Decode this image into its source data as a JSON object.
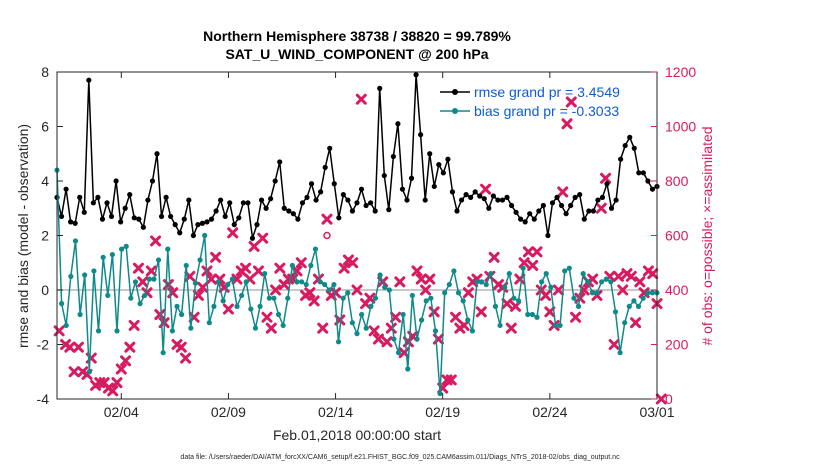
{
  "chart_data": {
    "type": "line",
    "title_line1": "Northern Hemisphere 38738 / 38820 = 99.789%",
    "title_line2": "SAT_U_WIND_COMPONENT @ 200 hPa",
    "ylabel_left": "rmse and bias (model - observation)",
    "ylabel_right": "# of obs: o=possible; ×=assimilated",
    "xlabel": "Feb.01,2018 00:00:00 start",
    "footnote": "data file: /Users/raeder/DAI/ATM_forcXX/CAM6_setup/f.e21.FHIST_BGC.f09_025.CAM6assim.011/Diags_NTrS_2018-02/obs_diag_output.nc",
    "xlim": [
      1,
      29
    ],
    "ylim_left": [
      -4,
      8
    ],
    "ylim_right": [
      0,
      1200
    ],
    "x_ticks": [
      {
        "x": 4,
        "label": "02/04"
      },
      {
        "x": 9,
        "label": "02/09"
      },
      {
        "x": 14,
        "label": "02/14"
      },
      {
        "x": 19,
        "label": "02/19"
      },
      {
        "x": 24,
        "label": "02/24"
      },
      {
        "x": 29,
        "label": "03/01"
      }
    ],
    "y_left_ticks": [
      -4,
      -2,
      0,
      2,
      4,
      6,
      8
    ],
    "y_right_ticks": [
      0,
      200,
      400,
      600,
      800,
      1000,
      1200
    ],
    "legend_position": "top-right",
    "colors": {
      "rmse": "#000000",
      "bias": "#0f8a8a",
      "obs": "#d81b60",
      "zero_line": "#b5b5b5",
      "legend_text": "#0d5bd8"
    },
    "series": [
      {
        "name": "rmse grand pr = 3.4549",
        "values": [
          3.4,
          2.7,
          3.7,
          2.5,
          2.45,
          3.4,
          2.85,
          7.7,
          3.2,
          3.4,
          2.6,
          3.2,
          2.7,
          4.0,
          2.5,
          3.0,
          3.5,
          2.65,
          2.6,
          2.3,
          3.3,
          4.0,
          5.0,
          2.7,
          3.4,
          2.7,
          2.4,
          2.1,
          2.6,
          3.3,
          2.0,
          2.4,
          2.45,
          2.5,
          2.6,
          2.9,
          3.3,
          2.7,
          3.2,
          2.4,
          2.65,
          3.2,
          3.2,
          1.9,
          2.4,
          3.3,
          3.0,
          3.35,
          4.0,
          4.7,
          3.0,
          2.9,
          2.8,
          2.6,
          3.2,
          3.4,
          3.9,
          3.3,
          3.6,
          4.5,
          5.2,
          3.9,
          2.65,
          3.5,
          3.3,
          2.9,
          3.2,
          3.7,
          3.1,
          3.2,
          2.9,
          7.4,
          4.2,
          2.95,
          4.9,
          6.1,
          3.7,
          3.3,
          4.1,
          7.9,
          5.7,
          3.3,
          5.0,
          3.8,
          4.6,
          4.3,
          4.8,
          3.6,
          2.9,
          3.3,
          3.5,
          3.4,
          3.6,
          3.45,
          3.35,
          3.0,
          3.45,
          3.3,
          3.3,
          3.4,
          3.1,
          2.85,
          2.6,
          2.5,
          2.8,
          2.6,
          2.9,
          3.1,
          2.0,
          3.2,
          3.4,
          3.1,
          2.8,
          3.1,
          3.4,
          3.5,
          2.6,
          2.9,
          2.9,
          3.3,
          3.4,
          3.9,
          3.0,
          3.3,
          4.8,
          5.3,
          5.6,
          5.2,
          4.3,
          4.3,
          4.0,
          3.7,
          3.8
        ]
      },
      {
        "name": "bias grand pr = -0.3033",
        "values": [
          4.4,
          -0.5,
          -1.3,
          0.5,
          1.8,
          -0.9,
          0.55,
          -3.0,
          0.7,
          -1.5,
          1.2,
          -0.2,
          1.3,
          -1.5,
          1.5,
          1.6,
          -0.3,
          0.3,
          -0.5,
          -0.2,
          0.4,
          0.4,
          1.1,
          -2.3,
          1.5,
          -1.5,
          -0.6,
          -0.9,
          0.9,
          -1.4,
          0.25,
          1.1,
          2.0,
          -1.2,
          -0.6,
          0.3,
          -0.4,
          0.2,
          0.4,
          -0.6,
          -0.2,
          0.3,
          -0.7,
          -1.4,
          -0.6,
          0.6,
          -0.3,
          -0.3,
          -0.9,
          -1.3,
          -0.3,
          0.9,
          0.3,
          0.3,
          0.2,
          0.9,
          1.5,
          0.3,
          0.2,
          0.0,
          0.2,
          -1.9,
          -0.3,
          -0.1,
          -1.2,
          -1.6,
          -0.9,
          -1.4,
          -0.6,
          -0.3,
          0.55,
          0.1,
          0.0,
          -1.8,
          -2.3,
          -0.9,
          -2.9,
          -0.2,
          -1.8,
          -1.1,
          -0.4,
          -0.3,
          -1.5,
          -3.8,
          -0.1,
          0.2,
          0.7,
          -0.1,
          -0.4,
          -1.1,
          -1.5,
          0.3,
          0.3,
          0.2,
          0.6,
          -0.6,
          -1.3,
          0.1,
          0.6,
          -0.3,
          -0.4,
          0.8,
          -0.9,
          -0.9,
          -1.0,
          0.3,
          0.6,
          0.1,
          -1.3,
          -1.3,
          0.7,
          0.8,
          -0.3,
          -0.6,
          0.6,
          0.3,
          -0.1,
          -0.1,
          0.3,
          0.4,
          0.3,
          -0.8,
          -2.3,
          -1.2,
          -0.6,
          -0.4,
          -0.6,
          -0.3,
          -0.1,
          -0.1,
          -0.1
        ]
      }
    ],
    "obs_assimilated_points": [
      [
        1.1,
        250
      ],
      [
        1.4,
        200
      ],
      [
        1.6,
        190
      ],
      [
        1.8,
        100
      ],
      [
        2.0,
        190
      ],
      [
        2.2,
        100
      ],
      [
        2.4,
        90
      ],
      [
        2.6,
        150
      ],
      [
        2.8,
        50
      ],
      [
        3.0,
        60
      ],
      [
        3.2,
        60
      ],
      [
        3.4,
        40
      ],
      [
        3.6,
        30
      ],
      [
        3.8,
        60
      ],
      [
        4.0,
        110
      ],
      [
        4.2,
        140
      ],
      [
        4.4,
        190
      ],
      [
        4.6,
        270
      ],
      [
        4.8,
        480
      ],
      [
        5.0,
        430
      ],
      [
        5.2,
        390
      ],
      [
        5.4,
        470
      ],
      [
        5.6,
        580
      ],
      [
        5.8,
        310
      ],
      [
        6.0,
        280
      ],
      [
        6.2,
        420
      ],
      [
        6.4,
        390
      ],
      [
        6.6,
        200
      ],
      [
        6.8,
        190
      ],
      [
        7.0,
        150
      ],
      [
        7.2,
        450
      ],
      [
        7.4,
        300
      ],
      [
        7.6,
        380
      ],
      [
        7.8,
        410
      ],
      [
        8.0,
        470
      ],
      [
        8.2,
        440
      ],
      [
        8.4,
        520
      ],
      [
        8.6,
        440
      ],
      [
        8.8,
        410
      ],
      [
        9.0,
        330
      ],
      [
        9.2,
        610
      ],
      [
        9.4,
        440
      ],
      [
        9.6,
        470
      ],
      [
        9.8,
        480
      ],
      [
        10.0,
        440
      ],
      [
        10.2,
        560
      ],
      [
        10.4,
        470
      ],
      [
        10.6,
        590
      ],
      [
        10.8,
        300
      ],
      [
        11.0,
        260
      ],
      [
        11.2,
        400
      ],
      [
        11.4,
        480
      ],
      [
        11.6,
        420
      ],
      [
        11.8,
        440
      ],
      [
        12.0,
        440
      ],
      [
        12.2,
        470
      ],
      [
        12.4,
        500
      ],
      [
        12.6,
        380
      ],
      [
        12.8,
        390
      ],
      [
        13.0,
        360
      ],
      [
        13.2,
        440
      ],
      [
        13.4,
        260
      ],
      [
        13.6,
        660
      ],
      [
        13.8,
        380
      ],
      [
        14.0,
        390
      ],
      [
        14.2,
        290
      ],
      [
        14.4,
        480
      ],
      [
        14.6,
        510
      ],
      [
        14.8,
        500
      ],
      [
        15.0,
        400
      ],
      [
        15.2,
        1100
      ],
      [
        15.4,
        350
      ],
      [
        15.6,
        370
      ],
      [
        15.8,
        250
      ],
      [
        16.0,
        220
      ],
      [
        16.2,
        430
      ],
      [
        16.4,
        210
      ],
      [
        16.6,
        260
      ],
      [
        16.8,
        300
      ],
      [
        17.0,
        430
      ],
      [
        17.2,
        170
      ],
      [
        17.4,
        210
      ],
      [
        17.6,
        230
      ],
      [
        17.8,
        470
      ],
      [
        18.0,
        440
      ],
      [
        18.2,
        400
      ],
      [
        18.4,
        440
      ],
      [
        18.6,
        320
      ],
      [
        18.8,
        220
      ],
      [
        19.0,
        40
      ],
      [
        19.2,
        70
      ],
      [
        19.4,
        70
      ],
      [
        19.6,
        300
      ],
      [
        19.8,
        260
      ],
      [
        20.0,
        270
      ],
      [
        20.2,
        390
      ],
      [
        20.4,
        430
      ],
      [
        20.6,
        440
      ],
      [
        20.8,
        320
      ],
      [
        21.0,
        770
      ],
      [
        21.2,
        450
      ],
      [
        21.4,
        520
      ],
      [
        21.6,
        420
      ],
      [
        21.8,
        410
      ],
      [
        22.0,
        350
      ],
      [
        22.2,
        260
      ],
      [
        22.4,
        340
      ],
      [
        22.6,
        440
      ],
      [
        22.8,
        500
      ],
      [
        23.0,
        540
      ],
      [
        23.2,
        490
      ],
      [
        23.4,
        540
      ],
      [
        23.6,
        400
      ],
      [
        23.8,
        380
      ],
      [
        24.0,
        320
      ],
      [
        24.2,
        270
      ],
      [
        24.4,
        400
      ],
      [
        24.6,
        760
      ],
      [
        24.8,
        1010
      ],
      [
        25.0,
        1090
      ],
      [
        25.2,
        300
      ],
      [
        25.4,
        370
      ],
      [
        25.6,
        400
      ],
      [
        25.8,
        430
      ],
      [
        26.0,
        440
      ],
      [
        26.2,
        380
      ],
      [
        26.4,
        700
      ],
      [
        26.6,
        810
      ],
      [
        26.8,
        450
      ],
      [
        27.0,
        200
      ],
      [
        27.2,
        450
      ],
      [
        27.4,
        400
      ],
      [
        27.6,
        460
      ],
      [
        27.8,
        450
      ],
      [
        28.0,
        280
      ],
      [
        28.2,
        430
      ],
      [
        28.4,
        390
      ],
      [
        28.6,
        470
      ],
      [
        28.8,
        460
      ],
      [
        29.0,
        350
      ],
      [
        29.2,
        0
      ]
    ],
    "obs_possible_points": [
      [
        13.6,
        600
      ]
    ]
  }
}
